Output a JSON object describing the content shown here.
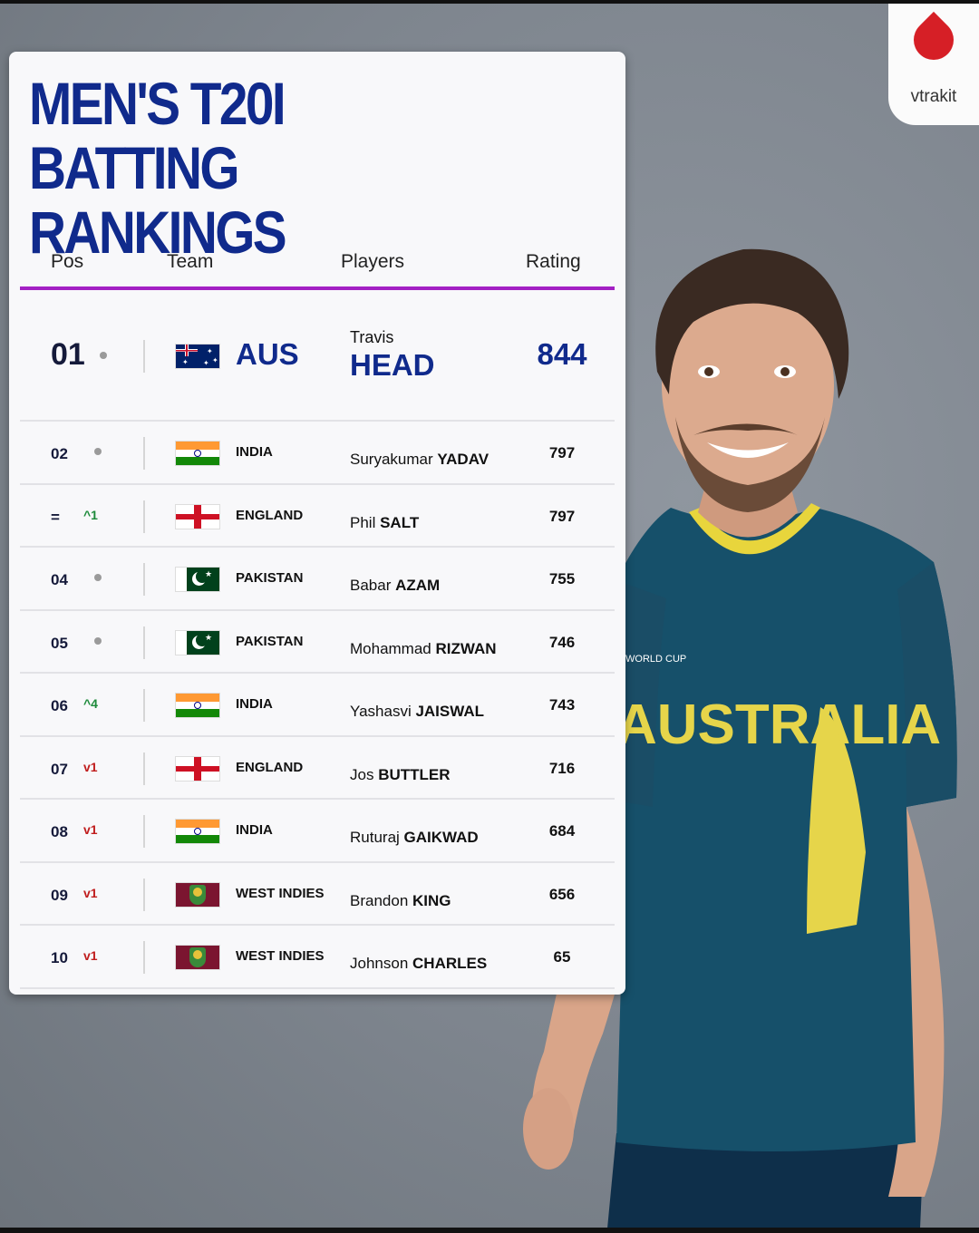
{
  "logo": {
    "text": "vtrakit"
  },
  "title": {
    "line1": "MEN'S T20I",
    "line2": "BATTING RANKINGS"
  },
  "columns": {
    "pos": "Pos",
    "team": "Team",
    "players": "Players",
    "rating": "Rating"
  },
  "leader": {
    "pos": "01",
    "move": "same",
    "team": "AUS",
    "first_name": "Travis",
    "last_name": "HEAD",
    "rating": "844"
  },
  "rows": [
    {
      "pos": "02",
      "move": "same",
      "move_text": "",
      "flag": "india",
      "team": "INDIA",
      "first": "Suryakumar",
      "last": "YADAV",
      "rating": "797"
    },
    {
      "pos": "=",
      "move": "up",
      "move_text": "^1",
      "flag": "england",
      "team": "ENGLAND",
      "first": "Phil",
      "last": "SALT",
      "rating": "797"
    },
    {
      "pos": "04",
      "move": "same",
      "move_text": "",
      "flag": "pakistan",
      "team": "PAKISTAN",
      "first": "Babar",
      "last": "AZAM",
      "rating": "755"
    },
    {
      "pos": "05",
      "move": "same",
      "move_text": "",
      "flag": "pakistan",
      "team": "PAKISTAN",
      "first": "Mohammad",
      "last": "RIZWAN",
      "rating": "746"
    },
    {
      "pos": "06",
      "move": "up",
      "move_text": "^4",
      "flag": "india",
      "team": "INDIA",
      "first": "Yashasvi",
      "last": "JAISWAL",
      "rating": "743"
    },
    {
      "pos": "07",
      "move": "down",
      "move_text": "v1",
      "flag": "england",
      "team": "ENGLAND",
      "first": "Jos",
      "last": "BUTTLER",
      "rating": "716"
    },
    {
      "pos": "08",
      "move": "down",
      "move_text": "v1",
      "flag": "india",
      "team": "INDIA",
      "first": "Ruturaj",
      "last": "GAIKWAD",
      "rating": "684"
    },
    {
      "pos": "09",
      "move": "down",
      "move_text": "v1",
      "flag": "westindies",
      "team": "WEST INDIES",
      "first": "Brandon",
      "last": "KING",
      "rating": "656"
    },
    {
      "pos": "10",
      "move": "down",
      "move_text": "v1",
      "flag": "westindies",
      "team": "WEST INDIES",
      "first": "Johnson",
      "last": "CHARLES",
      "rating": "65"
    }
  ],
  "player_photo": {
    "shirt_text": "AUSTRALIA",
    "shirt_badge": "WORLD CUP"
  },
  "colors": {
    "title": "#102a8c",
    "accent_line": "#a320c4",
    "up": "#1d8a3a",
    "down": "#c01d1d",
    "logo": "#d61f26"
  }
}
